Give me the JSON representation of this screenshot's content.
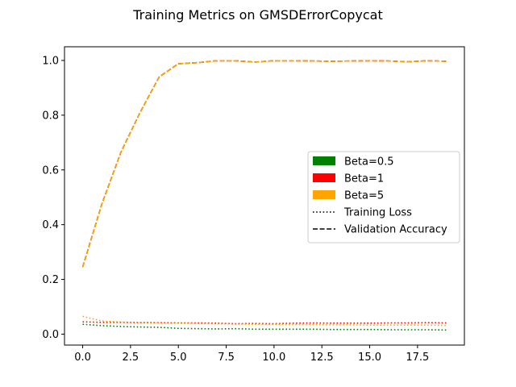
{
  "chart_data": {
    "type": "line",
    "title": "Training Metrics on GMSDErrorCopycat",
    "xlabel": "",
    "ylabel": "",
    "xlim": [
      -0.95,
      19.95
    ],
    "ylim": [
      -0.04,
      1.05
    ],
    "x_ticks": [
      0.0,
      2.5,
      5.0,
      7.5,
      10.0,
      12.5,
      15.0,
      17.5
    ],
    "x_tick_labels": [
      "0.0",
      "2.5",
      "5.0",
      "7.5",
      "10.0",
      "12.5",
      "15.0",
      "17.5"
    ],
    "y_ticks": [
      0.0,
      0.2,
      0.4,
      0.6,
      0.8,
      1.0
    ],
    "y_tick_labels": [
      "0.0",
      "0.2",
      "0.4",
      "0.6",
      "0.8",
      "1.0"
    ],
    "grid": false,
    "legend_position": "center-right",
    "x": [
      0,
      1,
      2,
      3,
      4,
      5,
      6,
      7,
      8,
      9,
      10,
      11,
      12,
      13,
      14,
      15,
      16,
      17,
      18,
      19
    ],
    "series": [
      {
        "name": "Beta=0.5",
        "color": "#008000",
        "training_loss": [
          0.036,
          0.031,
          0.028,
          0.026,
          0.025,
          0.021,
          0.02,
          0.019,
          0.02,
          0.018,
          0.018,
          0.018,
          0.018,
          0.017,
          0.017,
          0.017,
          0.016,
          0.016,
          0.016,
          0.015
        ],
        "validation_accuracy": [
          0.245,
          0.475,
          0.665,
          0.81,
          0.94,
          0.988,
          0.992,
          0.999,
          0.999,
          0.994,
          0.999,
          0.999,
          0.998,
          0.997,
          0.998,
          0.999,
          0.998,
          0.995,
          0.999,
          0.997
        ]
      },
      {
        "name": "Beta=1",
        "color": "#ff0000",
        "training_loss": [
          0.045,
          0.043,
          0.043,
          0.042,
          0.042,
          0.041,
          0.041,
          0.04,
          0.038,
          0.039,
          0.038,
          0.04,
          0.041,
          0.04,
          0.04,
          0.04,
          0.041,
          0.041,
          0.042,
          0.041
        ],
        "validation_accuracy": [
          0.245,
          0.475,
          0.665,
          0.81,
          0.94,
          0.988,
          0.992,
          0.999,
          0.999,
          0.994,
          0.999,
          0.999,
          0.998,
          0.997,
          0.998,
          0.999,
          0.998,
          0.995,
          0.999,
          0.997
        ]
      },
      {
        "name": "Beta=5",
        "color": "#ffa500",
        "training_loss": [
          0.065,
          0.048,
          0.044,
          0.043,
          0.042,
          0.04,
          0.039,
          0.038,
          0.037,
          0.036,
          0.036,
          0.035,
          0.035,
          0.034,
          0.034,
          0.033,
          0.033,
          0.033,
          0.033,
          0.032
        ],
        "validation_accuracy": [
          0.245,
          0.475,
          0.665,
          0.81,
          0.94,
          0.988,
          0.992,
          0.999,
          0.999,
          0.994,
          0.999,
          0.999,
          0.998,
          0.997,
          0.998,
          0.999,
          0.998,
          0.995,
          0.999,
          0.997
        ]
      }
    ],
    "legend": [
      {
        "label": "Beta=0.5",
        "kind": "patch",
        "color": "#008000"
      },
      {
        "label": "Beta=1",
        "kind": "patch",
        "color": "#ff0000"
      },
      {
        "label": "Beta=5",
        "kind": "patch",
        "color": "#ffa500"
      },
      {
        "label": "Training Loss",
        "kind": "dotted",
        "color": "#000000"
      },
      {
        "label": "Validation Accuracy",
        "kind": "dashed",
        "color": "#000000"
      }
    ]
  }
}
